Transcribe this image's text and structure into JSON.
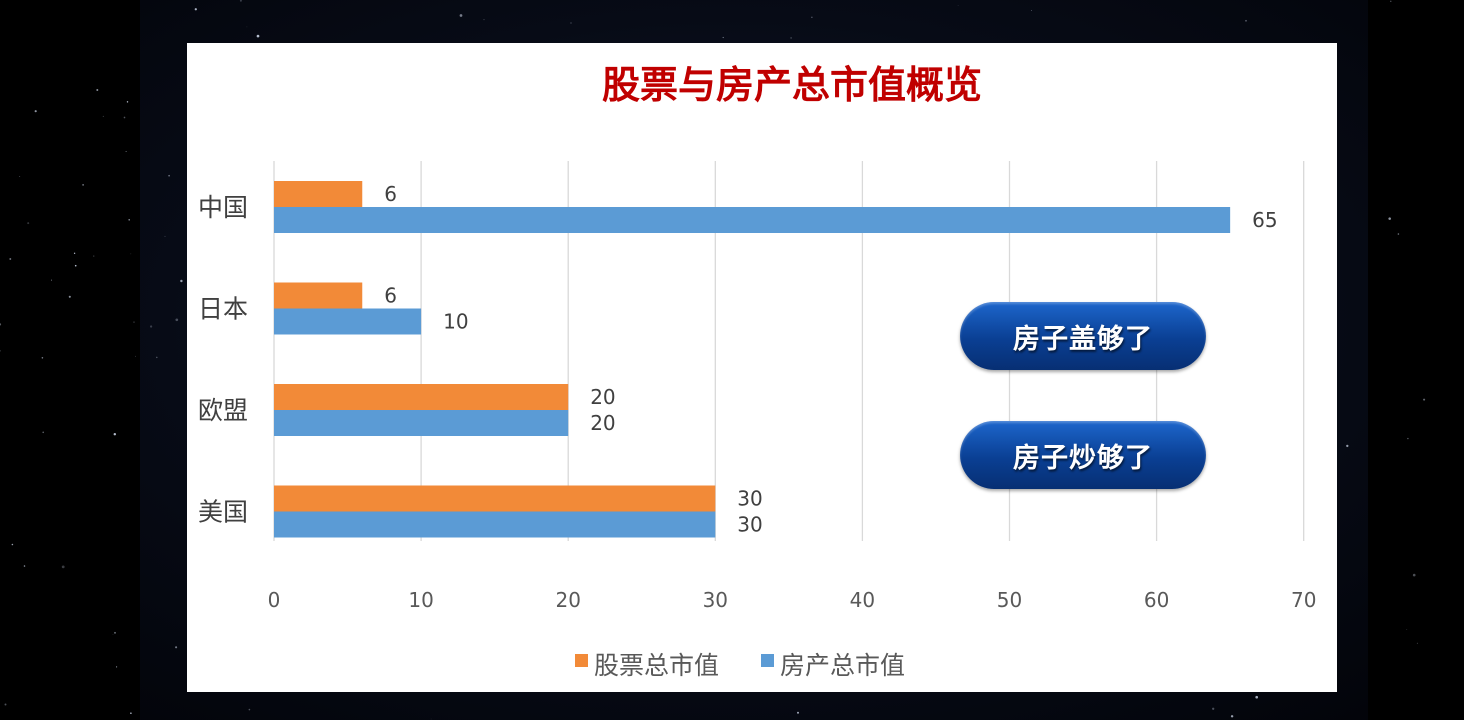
{
  "chart_data": {
    "type": "bar",
    "orientation": "horizontal",
    "title": "股票与房产总市值概览",
    "categories": [
      "中国",
      "日本",
      "欧盟",
      "美国"
    ],
    "series": [
      {
        "name": "股票总市值",
        "values": [
          6,
          6,
          20,
          30
        ],
        "color": "#f28a38"
      },
      {
        "name": "房产总市值",
        "values": [
          65,
          10,
          20,
          30
        ],
        "color": "#5b9bd5"
      }
    ],
    "xlim": [
      0,
      70
    ],
    "xticks": [
      0,
      10,
      20,
      30,
      40,
      50,
      60,
      70
    ],
    "grid": true,
    "legend_position": "bottom",
    "title_color": "#c00000"
  },
  "callouts": [
    "房子盖够了",
    "房子炒够了"
  ]
}
